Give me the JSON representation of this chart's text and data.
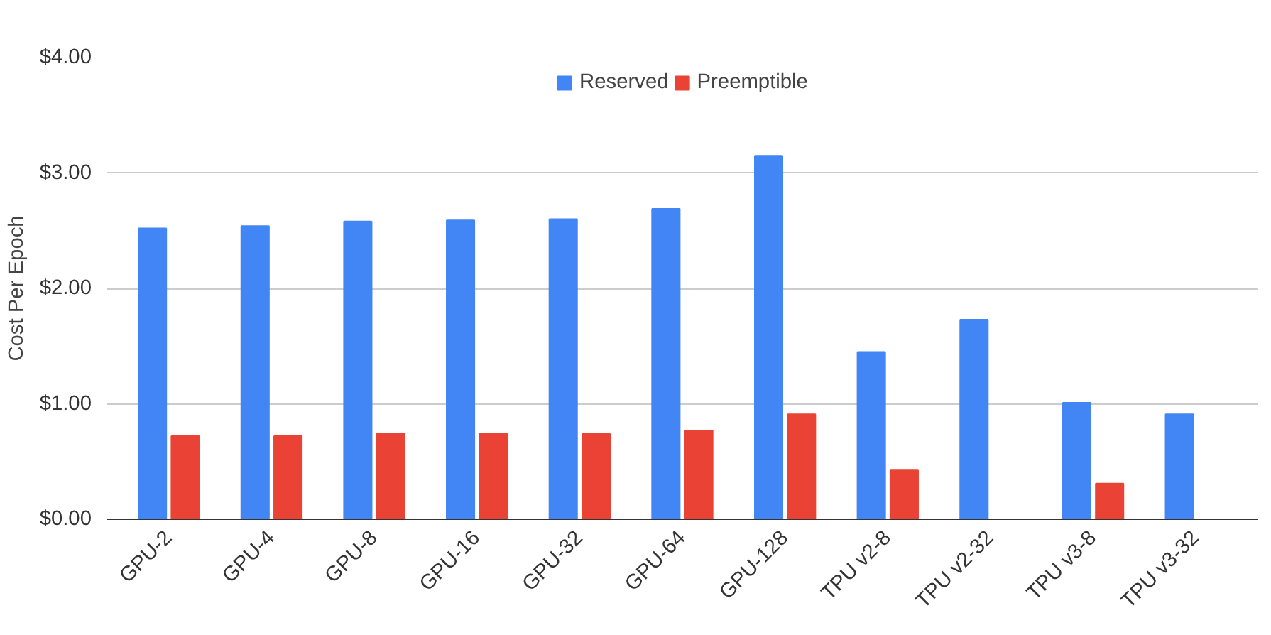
{
  "chart_data": {
    "type": "bar",
    "ylabel": "Cost Per Epoch",
    "categories": [
      "GPU-2",
      "GPU-4",
      "GPU-8",
      "GPU-16",
      "GPU-32",
      "GPU-64",
      "GPU-128",
      "TPU v2-8",
      "TPU v2-32",
      "TPU v3-8",
      "TPU v3-32"
    ],
    "series": [
      {
        "name": "Reserved",
        "color": "#4285f4",
        "values": [
          2.52,
          2.54,
          2.58,
          2.59,
          2.6,
          2.69,
          3.15,
          1.45,
          1.73,
          1.01,
          0.91
        ]
      },
      {
        "name": "Preemptible",
        "color": "#ea4335",
        "values": [
          0.72,
          0.72,
          0.74,
          0.74,
          0.74,
          0.77,
          0.91,
          0.43,
          null,
          0.31,
          null
        ]
      }
    ],
    "ylim": [
      0,
      4
    ],
    "yticks": [
      {
        "value": 0,
        "label": "$0.00"
      },
      {
        "value": 1,
        "label": "$1.00"
      },
      {
        "value": 2,
        "label": "$2.00"
      },
      {
        "value": 3,
        "label": "$3.00"
      },
      {
        "value": 4,
        "label": "$4.00"
      }
    ],
    "grid": "y",
    "legend": "top"
  }
}
